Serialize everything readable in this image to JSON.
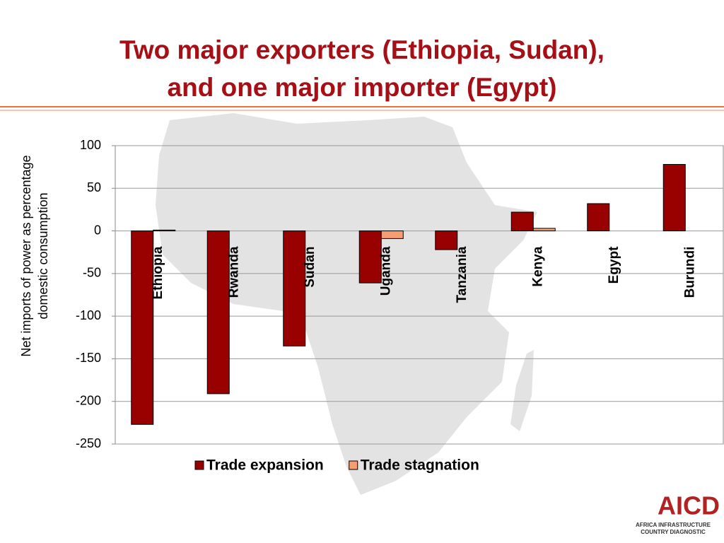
{
  "chart_data": {
    "type": "bar",
    "title": [
      "Two major exporters (Ethiopia, Sudan),",
      "and one major importer (Egypt)"
    ],
    "y_label": [
      "Net imports of power as percentage",
      "domestic consumption"
    ],
    "categories": [
      "Ethiopia",
      "Rwanda",
      "Sudan",
      "Uganda",
      "Tanzania",
      "Kenya",
      "Egypt",
      "Burundi"
    ],
    "series": [
      {
        "name": "Trade expansion",
        "color": "#990000",
        "values": [
          -227,
          -191,
          -135,
          -61,
          -22,
          22,
          32,
          78
        ]
      },
      {
        "name": "Trade stagnation",
        "color": "#f79d72",
        "values": [
          1,
          0,
          0,
          -9,
          0,
          3,
          0,
          0
        ]
      }
    ],
    "ylim": [
      -250,
      100
    ],
    "yticks": [
      -250,
      -200,
      -150,
      -100,
      -50,
      0,
      50,
      100
    ],
    "grid": true,
    "legend": "bottom"
  },
  "logo": {
    "name": "AICD",
    "line1": "AFRICA INFRASTRUCTURE",
    "line2": "COUNTRY DIAGNOSTIC"
  }
}
